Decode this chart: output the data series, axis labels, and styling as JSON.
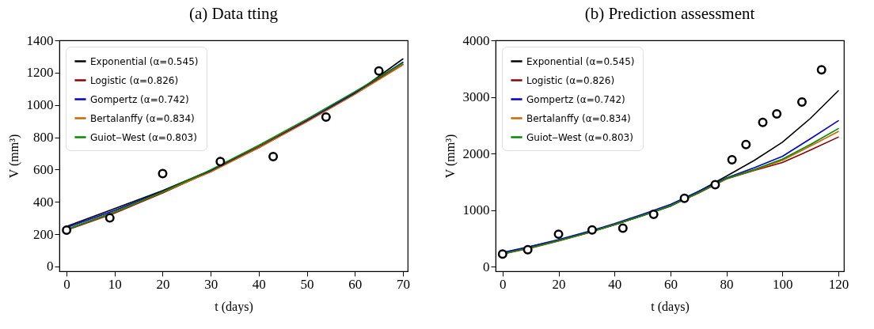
{
  "chart_data": [
    {
      "type": "line",
      "title": "(a) Data   tting",
      "xlabel": "t (days)",
      "ylabel": "V (mm³)",
      "xlim": [
        -1.5,
        71
      ],
      "xticks": [
        0,
        10,
        20,
        30,
        40,
        50,
        60,
        70
      ],
      "ylim": [
        -30,
        1400
      ],
      "yticks": [
        0,
        200,
        400,
        600,
        800,
        1000,
        1200,
        1400
      ],
      "grid": false,
      "legend": "top left",
      "line_style": "solid",
      "series": [
        {
          "name": "Exponential (α=0.545)",
          "color": "#000000",
          "x": [
            0,
            10,
            20,
            30,
            40,
            50,
            60,
            70
          ],
          "values": [
            248,
            358,
            470,
            595,
            740,
            900,
            1070,
            1285
          ]
        },
        {
          "name": "Logistic (α=0.826)",
          "color": "#8b0000",
          "x": [
            0,
            10,
            20,
            30,
            40,
            50,
            60,
            70
          ],
          "values": [
            225,
            330,
            455,
            590,
            740,
            905,
            1075,
            1250
          ]
        },
        {
          "name": "Gompertz (α=0.742)",
          "color": "#0000cc",
          "x": [
            0,
            10,
            20,
            30,
            40,
            50,
            60,
            70
          ],
          "values": [
            240,
            347,
            465,
            590,
            735,
            900,
            1075,
            1265
          ]
        },
        {
          "name": "Bertalanffy (α=0.834)",
          "color": "#cc6600",
          "x": [
            0,
            10,
            20,
            30,
            40,
            50,
            60,
            70
          ],
          "values": [
            228,
            335,
            460,
            585,
            735,
            895,
            1065,
            1248
          ]
        },
        {
          "name": "Guiot‒West (α=0.803)",
          "color": "#008800",
          "x": [
            0,
            10,
            20,
            30,
            40,
            50,
            60,
            70
          ],
          "values": [
            230,
            338,
            462,
            598,
            750,
            912,
            1082,
            1260
          ]
        },
        {
          "type": "scatter",
          "marker": "circle",
          "color": "#000000",
          "x": [
            0,
            9,
            20,
            32,
            43,
            54,
            65
          ],
          "values": [
            225,
            300,
            575,
            650,
            680,
            925,
            1210
          ]
        }
      ]
    },
    {
      "type": "line",
      "title": "(b) Prediction assessment",
      "xlabel": "t (days)",
      "ylabel": "V (mm³)",
      "xlim": [
        -2.5,
        122
      ],
      "xticks": [
        0,
        20,
        40,
        60,
        80,
        100,
        120
      ],
      "ylim": [
        -80,
        4000
      ],
      "yticks": [
        0,
        1000,
        2000,
        3000,
        4000
      ],
      "grid": false,
      "legend": "top left",
      "line_style": "solid",
      "series": [
        {
          "name": "Exponential (α=0.545)",
          "color": "#000000",
          "x": [
            0,
            10,
            20,
            30,
            40,
            50,
            60,
            70,
            80,
            90,
            100,
            110,
            120
          ],
          "values": [
            235,
            355,
            470,
            595,
            740,
            900,
            1070,
            1330,
            1600,
            1880,
            2200,
            2620,
            3110
          ]
        },
        {
          "name": "Logistic (α=0.826)",
          "color": "#8b0000",
          "x": [
            0,
            10,
            20,
            30,
            40,
            50,
            60,
            70,
            80,
            90,
            100,
            110,
            120
          ],
          "values": [
            225,
            330,
            455,
            590,
            740,
            905,
            1075,
            1300,
            1550,
            1700,
            1840,
            2060,
            2290
          ]
        },
        {
          "name": "Gompertz (α=0.742)",
          "color": "#0000cc",
          "x": [
            0,
            10,
            20,
            30,
            40,
            50,
            60,
            70,
            80,
            90,
            100,
            110,
            120
          ],
          "values": [
            250,
            360,
            480,
            615,
            760,
            925,
            1100,
            1330,
            1570,
            1750,
            1950,
            2260,
            2580
          ]
        },
        {
          "name": "Bertalanffy (α=0.834)",
          "color": "#cc6600",
          "x": [
            0,
            10,
            20,
            30,
            40,
            50,
            60,
            70,
            80,
            90,
            100,
            110,
            120
          ],
          "values": [
            228,
            335,
            460,
            592,
            745,
            905,
            1075,
            1305,
            1555,
            1710,
            1880,
            2130,
            2390
          ]
        },
        {
          "name": "Guiot‒West (α=0.803)",
          "color": "#008800",
          "x": [
            0,
            10,
            20,
            30,
            40,
            50,
            60,
            70,
            80,
            90,
            100,
            110,
            120
          ],
          "values": [
            230,
            338,
            462,
            595,
            745,
            905,
            1075,
            1310,
            1560,
            1720,
            1900,
            2160,
            2440
          ]
        },
        {
          "type": "scatter",
          "marker": "circle",
          "color": "#000000",
          "x": [
            0,
            9,
            20,
            32,
            43,
            54,
            65,
            76,
            82,
            87,
            93,
            98,
            107,
            114
          ],
          "values": [
            225,
            300,
            575,
            650,
            680,
            925,
            1210,
            1450,
            1890,
            2160,
            2550,
            2700,
            2910,
            3480
          ]
        }
      ]
    }
  ]
}
